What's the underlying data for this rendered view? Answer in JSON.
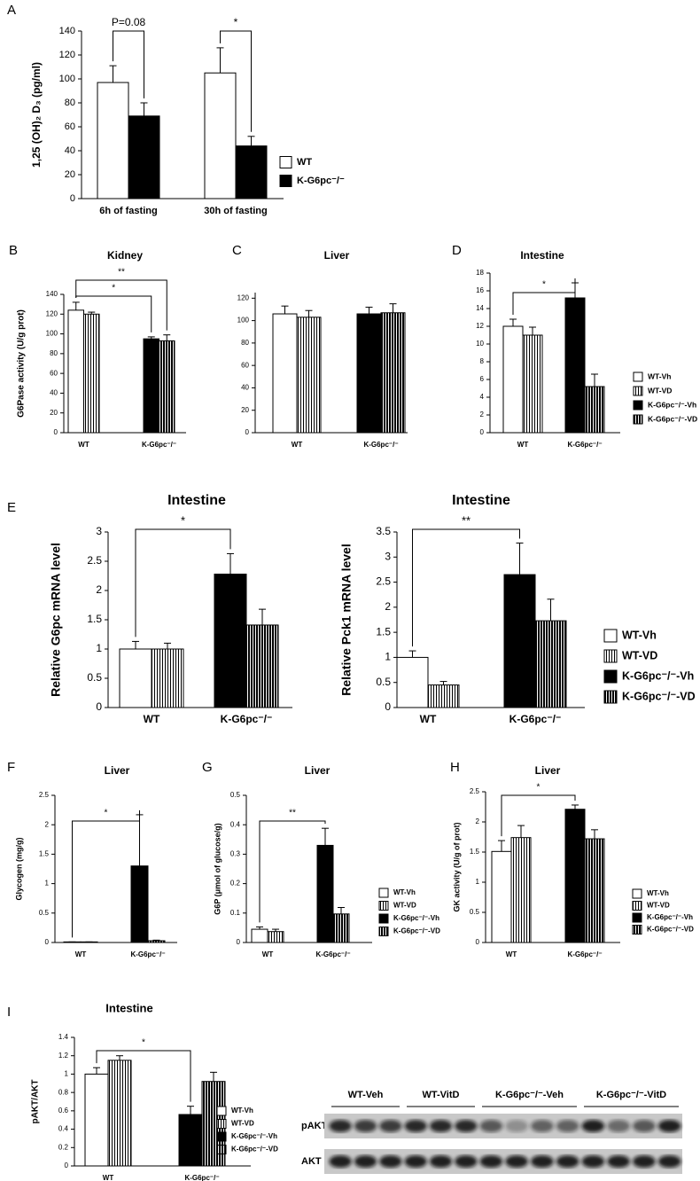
{
  "chart_data": [
    {
      "type": "bar",
      "panel": "A",
      "ylabel": "1,25 (OH)₂ D₃ (pg/ml)",
      "categories": [
        "6h of fasting",
        "30h of fasting"
      ],
      "series": [
        {
          "name": "WT",
          "color": "#ffffff",
          "hatch": false,
          "values": [
            97,
            105
          ],
          "errors": [
            14,
            21
          ]
        },
        {
          "name": "K-G6pc⁻/⁻",
          "color": "#000000",
          "hatch": false,
          "values": [
            69,
            44
          ],
          "errors": [
            11,
            8
          ]
        }
      ],
      "ylim": [
        0,
        140
      ],
      "yticks": [
        0,
        20,
        40,
        60,
        80,
        100,
        120,
        140
      ],
      "annotations": [
        "P=0.08",
        "*"
      ]
    },
    {
      "type": "bar",
      "panel": "B",
      "title": "Kidney",
      "ylabel": "G6Pase activity (U/g prot)",
      "categories": [
        "WT",
        "K-G6pc⁻/⁻"
      ],
      "series": [
        {
          "color": "#ffffff",
          "hatch": false,
          "values": [
            124,
            null
          ],
          "errors": [
            8,
            null
          ]
        },
        {
          "color": "#ffffff",
          "hatch": true,
          "values": [
            120,
            null
          ],
          "errors": [
            2,
            null
          ]
        },
        {
          "color": "#000000",
          "hatch": false,
          "values": [
            null,
            95
          ],
          "errors": [
            null,
            2
          ]
        },
        {
          "color": "#000000",
          "hatch": true,
          "values": [
            null,
            93
          ],
          "errors": [
            null,
            6
          ]
        }
      ],
      "ylim": [
        0,
        140
      ],
      "yticks": [
        0,
        20,
        40,
        60,
        80,
        100,
        120,
        140
      ],
      "annotations": [
        "**",
        "*"
      ]
    },
    {
      "type": "bar",
      "panel": "C",
      "title": "Liver",
      "categories": [
        "WT",
        "K-G6pc⁻/⁻"
      ],
      "series": [
        {
          "color": "#ffffff",
          "hatch": false,
          "values": [
            106,
            null
          ],
          "errors": [
            7,
            null
          ]
        },
        {
          "color": "#ffffff",
          "hatch": true,
          "values": [
            103,
            null
          ],
          "errors": [
            6,
            null
          ]
        },
        {
          "color": "#000000",
          "hatch": false,
          "values": [
            null,
            106
          ],
          "errors": [
            null,
            6
          ]
        },
        {
          "color": "#000000",
          "hatch": true,
          "values": [
            null,
            107
          ],
          "errors": [
            null,
            8
          ]
        }
      ],
      "ylim": [
        0,
        125
      ],
      "yticks": [
        0,
        20,
        40,
        60,
        80,
        100,
        120
      ],
      "annotations": []
    },
    {
      "type": "bar",
      "panel": "D",
      "title": "Intestine",
      "categories": [
        "WT",
        "K-G6pc⁻/⁻"
      ],
      "series": [
        {
          "name": "WT-Vh",
          "color": "#ffffff",
          "hatch": false,
          "values": [
            12,
            null
          ],
          "errors": [
            0.8,
            null
          ]
        },
        {
          "name": "WT-VD",
          "color": "#ffffff",
          "hatch": true,
          "values": [
            11,
            null
          ],
          "errors": [
            0.9,
            null
          ]
        },
        {
          "name": "K-G6pc⁻/⁻-Vh",
          "color": "#000000",
          "hatch": false,
          "values": [
            null,
            15.2
          ],
          "errors": [
            null,
            1.7
          ]
        },
        {
          "name": "K-G6pc⁻/⁻-VD",
          "color": "#000000",
          "hatch": true,
          "values": [
            null,
            5.2
          ],
          "errors": [
            null,
            1.4
          ]
        }
      ],
      "ylim": [
        0,
        18
      ],
      "yticks": [
        0,
        2,
        4,
        6,
        8,
        10,
        12,
        14,
        16,
        18
      ],
      "annotations": [
        "*"
      ]
    },
    {
      "type": "bar",
      "panel": "E",
      "title": "Intestine",
      "ylabel": "Relative G6pc mRNA level",
      "categories": [
        "WT",
        "K-G6pc⁻/⁻"
      ],
      "series": [
        {
          "color": "#ffffff",
          "hatch": false,
          "values": [
            1,
            null
          ],
          "errors": [
            0.13,
            null
          ]
        },
        {
          "color": "#ffffff",
          "hatch": true,
          "values": [
            1,
            null
          ],
          "errors": [
            0.1,
            null
          ]
        },
        {
          "color": "#000000",
          "hatch": false,
          "values": [
            null,
            2.28
          ],
          "errors": [
            null,
            0.35
          ]
        },
        {
          "color": "#000000",
          "hatch": true,
          "values": [
            null,
            1.41
          ],
          "errors": [
            null,
            0.27
          ]
        }
      ],
      "ylim": [
        0,
        3
      ],
      "yticks": [
        0,
        0.5,
        1,
        1.5,
        2,
        2.5,
        3
      ],
      "annotations": [
        "*"
      ]
    },
    {
      "type": "bar",
      "title": "Intestine",
      "ylabel": "Relative Pck1 mRNA level",
      "categories": [
        "WT",
        "K-G6pc⁻/⁻"
      ],
      "series": [
        {
          "name": "WT-Vh",
          "color": "#ffffff",
          "hatch": false,
          "values": [
            1,
            null
          ],
          "errors": [
            0.13,
            null
          ]
        },
        {
          "name": "WT-VD",
          "color": "#ffffff",
          "hatch": true,
          "values": [
            0.45,
            null
          ],
          "errors": [
            0.07,
            null
          ]
        },
        {
          "name": "K-G6pc⁻/⁻-Vh",
          "color": "#000000",
          "hatch": false,
          "values": [
            null,
            2.65
          ],
          "errors": [
            null,
            0.63
          ]
        },
        {
          "name": "K-G6pc⁻/⁻-VD",
          "color": "#000000",
          "hatch": true,
          "values": [
            null,
            1.73
          ],
          "errors": [
            null,
            0.43
          ]
        }
      ],
      "ylim": [
        0,
        3.5
      ],
      "yticks": [
        0,
        0.5,
        1,
        1.5,
        2,
        2.5,
        3,
        3.5
      ],
      "annotations": [
        "**"
      ]
    },
    {
      "type": "bar",
      "panel": "F",
      "title": "Liver",
      "ylabel": "Glycogen (mg/g)",
      "categories": [
        "WT",
        "K-G6pc⁻/⁻"
      ],
      "series": [
        {
          "color": "#ffffff",
          "hatch": false,
          "values": [
            0.01,
            null
          ],
          "errors": [
            0,
            null
          ]
        },
        {
          "color": "#ffffff",
          "hatch": true,
          "values": [
            0.01,
            null
          ],
          "errors": [
            0,
            null
          ]
        },
        {
          "color": "#000000",
          "hatch": false,
          "values": [
            null,
            1.3
          ],
          "errors": [
            null,
            0.87
          ]
        },
        {
          "color": "#000000",
          "hatch": true,
          "values": [
            null,
            0.03
          ],
          "errors": [
            null,
            0.01
          ]
        }
      ],
      "ylim": [
        0,
        2.5
      ],
      "yticks": [
        0,
        0.5,
        1,
        1.5,
        2,
        2.5
      ],
      "annotations": [
        "*"
      ]
    },
    {
      "type": "bar",
      "panel": "G",
      "title": "Liver",
      "ylabel": "G6P (μmol of glucose/g)",
      "categories": [
        "WT",
        "K-G6pc⁻/⁻"
      ],
      "series": [
        {
          "name": "WT-Vh",
          "color": "#ffffff",
          "hatch": false,
          "values": [
            0.045,
            null
          ],
          "errors": [
            0.008,
            null
          ]
        },
        {
          "name": "WT-VD",
          "color": "#ffffff",
          "hatch": true,
          "values": [
            0.037,
            null
          ],
          "errors": [
            0.008,
            null
          ]
        },
        {
          "name": "K-G6pc⁻/⁻-Vh",
          "color": "#000000",
          "hatch": false,
          "values": [
            null,
            0.33
          ],
          "errors": [
            null,
            0.058
          ]
        },
        {
          "name": "K-G6pc⁻/⁻-VD",
          "color": "#000000",
          "hatch": true,
          "values": [
            null,
            0.097
          ],
          "errors": [
            null,
            0.022
          ]
        }
      ],
      "ylim": [
        0,
        0.5
      ],
      "yticks": [
        0,
        0.1,
        0.2,
        0.3,
        0.4,
        0.5
      ],
      "annotations": [
        "**"
      ]
    },
    {
      "type": "bar",
      "panel": "H",
      "title": "Liver",
      "ylabel": "GK activity (U/g of prot)",
      "categories": [
        "WT",
        "K-G6pc⁻/⁻"
      ],
      "series": [
        {
          "name": "WT-Vh",
          "color": "#ffffff",
          "hatch": false,
          "values": [
            1.51,
            null
          ],
          "errors": [
            0.18,
            null
          ]
        },
        {
          "name": "WT-VD",
          "color": "#ffffff",
          "hatch": true,
          "values": [
            1.74,
            null
          ],
          "errors": [
            0.2,
            null
          ]
        },
        {
          "name": "K-G6pc⁻/⁻-Vh",
          "color": "#000000",
          "hatch": false,
          "values": [
            null,
            2.21
          ],
          "errors": [
            null,
            0.07
          ]
        },
        {
          "name": "K-G6pc⁻/⁻-VD",
          "color": "#000000",
          "hatch": true,
          "values": [
            null,
            1.72
          ],
          "errors": [
            null,
            0.15
          ]
        }
      ],
      "ylim": [
        0,
        2.5
      ],
      "yticks": [
        0,
        0.5,
        1,
        1.5,
        2,
        2.5
      ],
      "annotations": [
        "*"
      ]
    },
    {
      "type": "bar",
      "panel": "I",
      "title": "Intestine",
      "ylabel": "pAKT/AKT",
      "categories": [
        "WT",
        "K-G6pc⁻/⁻"
      ],
      "series": [
        {
          "name": "WT-Vh",
          "color": "#ffffff",
          "hatch": false,
          "values": [
            1.0,
            null
          ],
          "errors": [
            0.07,
            null
          ]
        },
        {
          "name": "WT-VD",
          "color": "#ffffff",
          "hatch": true,
          "values": [
            1.15,
            null
          ],
          "errors": [
            0.05,
            null
          ]
        },
        {
          "name": "K-G6pc⁻/⁻-Vh",
          "color": "#000000",
          "hatch": false,
          "values": [
            null,
            0.56
          ],
          "errors": [
            null,
            0.09
          ]
        },
        {
          "name": "K-G6pc⁻/⁻-VD",
          "color": "#000000",
          "hatch": true,
          "values": [
            null,
            0.92
          ],
          "errors": [
            null,
            0.1
          ]
        }
      ],
      "ylim": [
        0,
        1.4
      ],
      "yticks": [
        0,
        0.2,
        0.4,
        0.6,
        0.8,
        1,
        1.2,
        1.4
      ],
      "annotations": [
        "*"
      ]
    }
  ],
  "blot": {
    "groups": [
      "WT-Veh",
      "WT-VitD",
      "K-G6pc⁻/⁻-Veh",
      "K-G6pc⁻/⁻-VitD"
    ],
    "rows": [
      "pAKT",
      "AKT"
    ]
  }
}
